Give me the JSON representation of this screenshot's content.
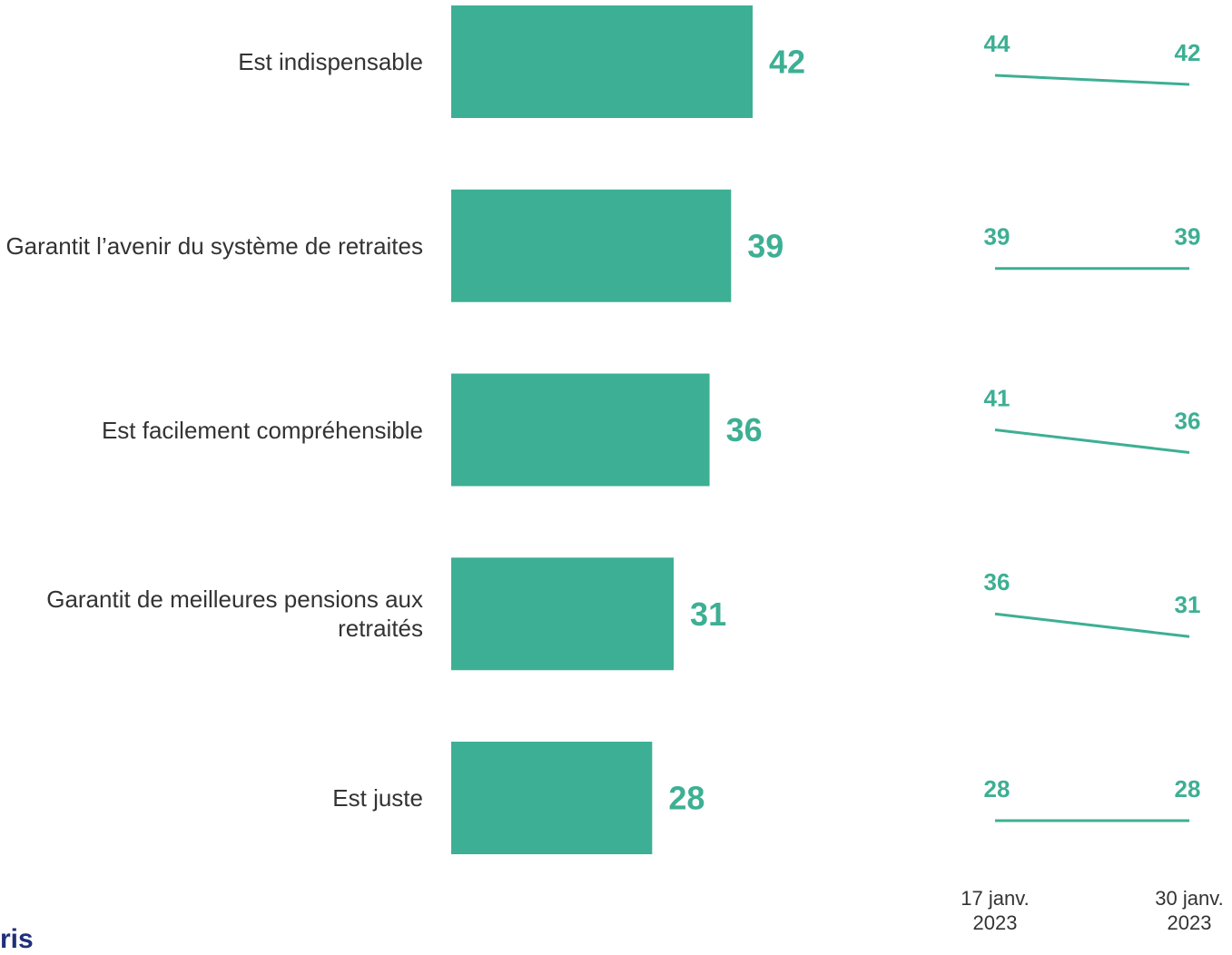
{
  "chart_data": [
    {
      "type": "bar",
      "orientation": "horizontal",
      "categories": [
        "Est indispensable",
        "Garantit l’avenir du système de retraites",
        "Est facilement compréhensible",
        "Garantit de meilleures pensions aux retraités",
        "Est juste"
      ],
      "values": [
        42,
        39,
        36,
        31,
        28
      ],
      "color": "#3daf94",
      "xlim": [
        0,
        42
      ]
    },
    {
      "type": "line",
      "x": [
        "17 janv. 2023",
        "30 janv. 2023"
      ],
      "color": "#3daf94",
      "series": [
        {
          "values": [
            44,
            42
          ]
        },
        {
          "values": [
            39,
            39
          ]
        },
        {
          "values": [
            41,
            36
          ]
        },
        {
          "values": [
            36,
            31
          ]
        },
        {
          "values": [
            28,
            28
          ]
        }
      ]
    }
  ],
  "logo": "ris"
}
